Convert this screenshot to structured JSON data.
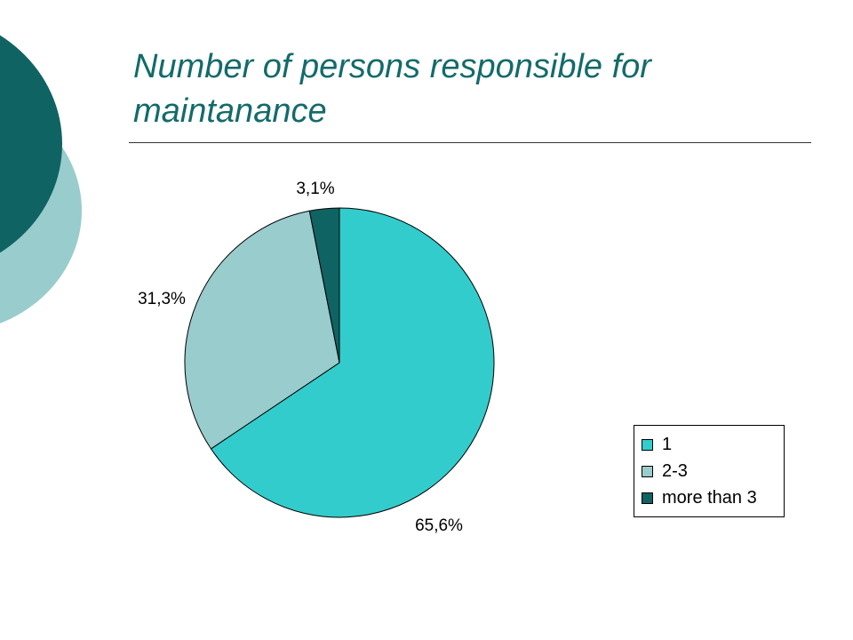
{
  "title": "Number of persons responsible for maintanance",
  "colors": {
    "title": "#136b6a",
    "decor_dark": "#0f6362",
    "decor_light": "#99cccc"
  },
  "chart_data": {
    "type": "pie",
    "title": "",
    "slices": [
      {
        "label": "1",
        "value": 65.6,
        "display": "65,6%",
        "color": "#33cccc"
      },
      {
        "label": "2-3",
        "value": 31.3,
        "display": "31,3%",
        "color": "#99cccc"
      },
      {
        "label": "more than 3",
        "value": 3.1,
        "display": "3,1%",
        "color": "#0f6362"
      }
    ],
    "legend": "right-bottom",
    "start_angle": "12 o'clock",
    "direction": "clockwise"
  }
}
